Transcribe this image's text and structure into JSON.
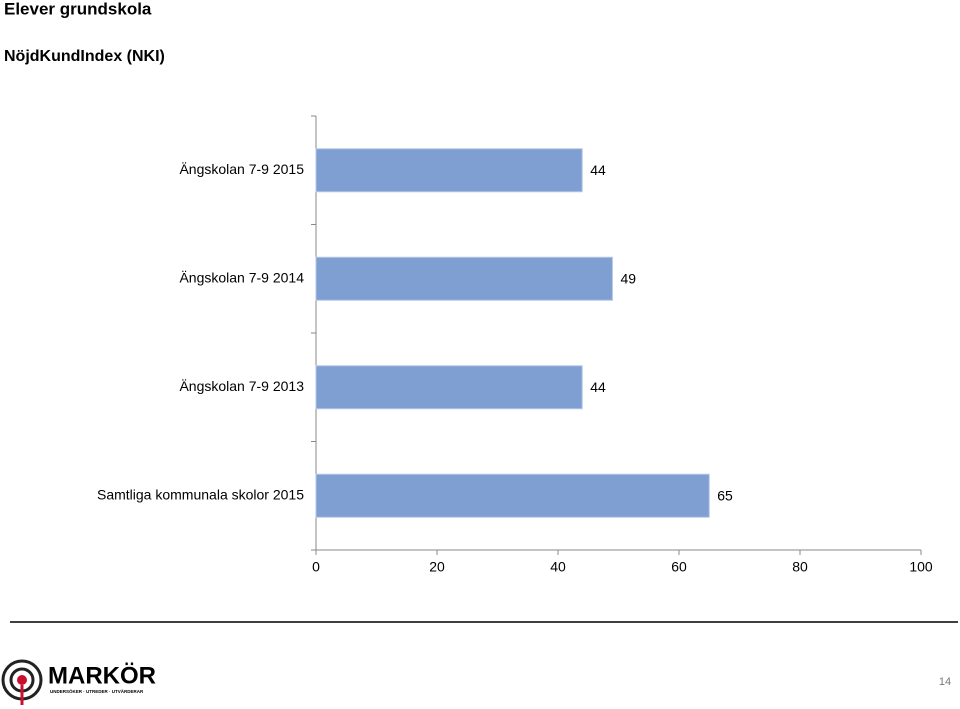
{
  "header": {
    "title": "Elever grundskola",
    "subtitle": "NöjdKundIndex (NKI)"
  },
  "chart_data": {
    "type": "bar",
    "orientation": "horizontal",
    "categories": [
      "Ängskolan 7-9 2015",
      "Ängskolan 7-9 2014",
      "Ängskolan 7-9 2013",
      "Samtliga kommunala skolor 2015"
    ],
    "values": [
      44,
      49,
      44,
      65
    ],
    "color": "#7f9fd3",
    "xlim": [
      0,
      100
    ],
    "xticks": [
      0,
      20,
      40,
      60,
      80,
      100
    ],
    "grid": false
  },
  "footer": {
    "logo": "MARKÖR",
    "logo_tagline": "UNDERSÖKER · UTREDER · UTVÄRDERAR",
    "page_number": "14"
  }
}
